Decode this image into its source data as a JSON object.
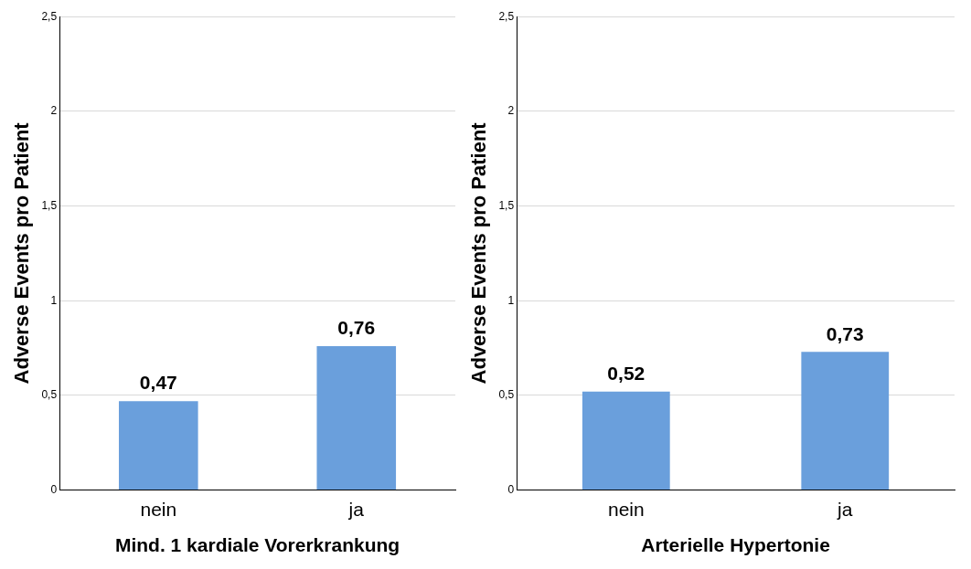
{
  "chart_data": [
    {
      "type": "bar",
      "xlabel": "Mind. 1 kardiale Vorerkrankung",
      "ylabel": "Adverse Events pro Patient",
      "categories": [
        "nein",
        "ja"
      ],
      "values": [
        0.47,
        0.76
      ],
      "value_labels": [
        "0,47",
        "0,76"
      ],
      "color": "#6a9fdc",
      "ylim": [
        0,
        2.5
      ],
      "yticks": [
        0,
        {
          "value": 0.5,
          "label": "0,5"
        },
        1,
        {
          "value": 1.5,
          "label": "1,5"
        },
        2,
        {
          "value": 2.5,
          "label": "2,5"
        }
      ],
      "grid": "y",
      "legend": false
    },
    {
      "type": "bar",
      "xlabel": "Arterielle Hypertonie",
      "ylabel": "Adverse Events pro Patient",
      "categories": [
        "nein",
        "ja"
      ],
      "values": [
        0.52,
        0.73
      ],
      "value_labels": [
        "0,52",
        "0,73"
      ],
      "color": "#6a9fdc",
      "ylim": [
        0,
        2.5
      ],
      "yticks": [
        0,
        {
          "value": 0.5,
          "label": "0,5"
        },
        1,
        {
          "value": 1.5,
          "label": "1,5"
        },
        2,
        {
          "value": 2.5,
          "label": "2,5"
        }
      ],
      "grid": "y",
      "legend": false
    }
  ]
}
